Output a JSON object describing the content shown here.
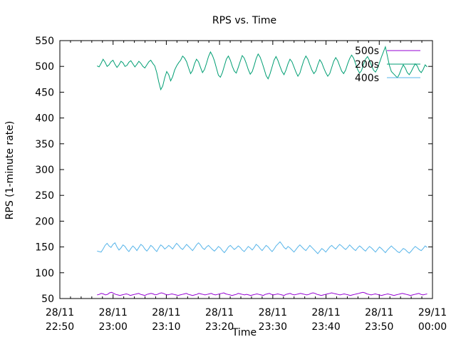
{
  "chart_data": {
    "type": "line",
    "title": "RPS vs. Time",
    "xlabel": "Time",
    "ylabel": "RPS (1-minute rate)",
    "ylim": [
      50,
      550
    ],
    "yticks": [
      50,
      100,
      150,
      200,
      250,
      300,
      350,
      400,
      450,
      500,
      550
    ],
    "xlim_minutes": [
      0,
      70
    ],
    "xticks": [
      {
        "minute": 0,
        "line1": "28/11",
        "line2": "22:50"
      },
      {
        "minute": 10,
        "line1": "28/11",
        "line2": "23:00"
      },
      {
        "minute": 20,
        "line1": "28/11",
        "line2": "23:10"
      },
      {
        "minute": 30,
        "line1": "28/11",
        "line2": "23:20"
      },
      {
        "minute": 40,
        "line1": "28/11",
        "line2": "23:30"
      },
      {
        "minute": 50,
        "line1": "28/11",
        "line2": "23:40"
      },
      {
        "minute": 60,
        "line1": "28/11",
        "line2": "23:50"
      },
      {
        "minute": 70,
        "line1": "29/11",
        "line2": "00:00"
      }
    ],
    "grid": false,
    "legend_position": "top-right",
    "series": [
      {
        "name": "500s",
        "color": "#9400d3",
        "x_start_minute": 7,
        "x_end_minute": 69,
        "values": [
          57,
          58,
          60,
          59,
          57,
          58,
          61,
          62,
          60,
          58,
          57,
          56,
          57,
          58,
          59,
          58,
          56,
          57,
          58,
          59,
          60,
          58,
          57,
          56,
          58,
          59,
          60,
          59,
          57,
          58,
          60,
          61,
          60,
          58,
          57,
          58,
          59,
          58,
          57,
          56,
          57,
          58,
          59,
          60,
          58,
          57,
          56,
          57,
          58,
          60,
          59,
          58,
          57,
          58,
          59,
          60,
          58,
          57,
          58,
          59,
          60,
          61,
          59,
          58,
          57,
          56,
          57,
          58,
          60,
          59,
          58,
          57,
          58,
          57,
          56,
          57,
          58,
          59,
          58,
          57,
          56,
          58,
          59,
          60,
          58,
          57,
          58,
          59,
          58,
          57,
          56,
          58,
          59,
          60,
          58,
          57,
          58,
          59,
          60,
          59,
          58,
          57,
          58,
          60,
          61,
          60,
          58,
          57,
          56,
          57,
          58,
          59,
          60,
          61,
          60,
          59,
          58,
          57,
          58,
          59,
          58,
          57,
          56,
          57,
          58,
          59,
          60,
          61,
          62,
          61,
          59,
          58,
          57,
          58,
          59,
          58,
          57,
          56,
          57,
          58,
          59,
          58,
          57,
          56,
          57,
          58,
          59,
          60,
          59,
          58,
          57,
          56,
          57,
          58,
          59,
          60,
          58,
          57,
          58,
          59
        ]
      },
      {
        "name": "200s",
        "color": "#009e73",
        "x_start_minute": 7,
        "x_end_minute": 69,
        "values": [
          501,
          499,
          506,
          514,
          508,
          500,
          503,
          509,
          512,
          504,
          498,
          503,
          510,
          507,
          500,
          502,
          508,
          511,
          505,
          499,
          504,
          510,
          506,
          500,
          497,
          503,
          509,
          512,
          506,
          501,
          488,
          470,
          455,
          462,
          478,
          490,
          484,
          472,
          480,
          493,
          501,
          507,
          512,
          520,
          516,
          509,
          497,
          486,
          492,
          505,
          514,
          509,
          498,
          488,
          494,
          506,
          519,
          528,
          521,
          511,
          497,
          483,
          479,
          488,
          501,
          514,
          520,
          512,
          500,
          491,
          487,
          498,
          510,
          521,
          516,
          506,
          494,
          485,
          490,
          502,
          515,
          524,
          518,
          507,
          495,
          482,
          476,
          486,
          499,
          512,
          519,
          511,
          500,
          490,
          484,
          493,
          505,
          514,
          509,
          499,
          489,
          481,
          487,
          500,
          512,
          520,
          514,
          503,
          493,
          486,
          491,
          503,
          513,
          507,
          497,
          488,
          481,
          486,
          498,
          510,
          517,
          511,
          501,
          491,
          486,
          493,
          505,
          515,
          522,
          516,
          505,
          494,
          487,
          492,
          504,
          514,
          519,
          512,
          502,
          493,
          489,
          496,
          507,
          518,
          528,
          538,
          520,
          502,
          490,
          486,
          482,
          478,
          485,
          495,
          503,
          497,
          488,
          484,
          490,
          498,
          505,
          501,
          492,
          488,
          494,
          503,
          499
        ]
      },
      {
        "name": "400s",
        "color": "#56b4e9",
        "x_start_minute": 7,
        "x_end_minute": 69,
        "values": [
          142,
          141,
          140,
          146,
          153,
          157,
          152,
          149,
          155,
          158,
          150,
          144,
          148,
          154,
          151,
          145,
          141,
          147,
          152,
          148,
          143,
          149,
          155,
          152,
          146,
          142,
          147,
          153,
          150,
          145,
          141,
          148,
          154,
          151,
          146,
          149,
          153,
          150,
          146,
          152,
          157,
          153,
          148,
          145,
          150,
          155,
          151,
          147,
          143,
          148,
          154,
          158,
          154,
          148,
          145,
          150,
          153,
          149,
          145,
          142,
          146,
          151,
          148,
          143,
          139,
          144,
          150,
          153,
          149,
          145,
          148,
          152,
          149,
          144,
          141,
          146,
          151,
          148,
          144,
          149,
          155,
          152,
          147,
          143,
          148,
          153,
          150,
          145,
          141,
          146,
          152,
          156,
          160,
          155,
          149,
          146,
          151,
          148,
          144,
          140,
          145,
          150,
          154,
          150,
          146,
          143,
          148,
          153,
          149,
          145,
          141,
          137,
          142,
          147,
          144,
          140,
          145,
          150,
          153,
          149,
          146,
          151,
          155,
          152,
          148,
          145,
          149,
          154,
          150,
          146,
          143,
          148,
          152,
          149,
          145,
          142,
          147,
          151,
          148,
          144,
          140,
          145,
          150,
          147,
          143,
          139,
          144,
          148,
          152,
          148,
          145,
          141,
          139,
          143,
          147,
          145,
          141,
          138,
          142,
          147,
          151,
          148,
          145,
          143,
          147,
          152,
          149
        ]
      }
    ]
  }
}
